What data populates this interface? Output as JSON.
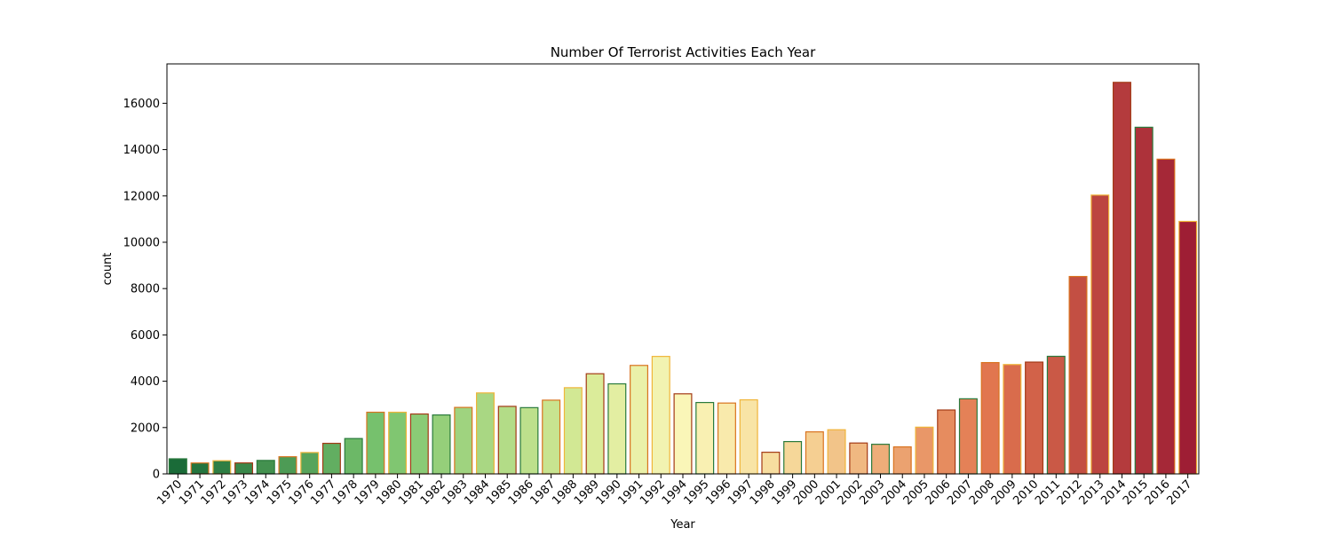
{
  "chart_data": {
    "type": "bar",
    "title": "Number Of Terrorist Activities Each Year",
    "xlabel": "Year",
    "ylabel": "count",
    "ylim": [
      0,
      17700
    ],
    "yticks": [
      0,
      2000,
      4000,
      6000,
      8000,
      10000,
      12000,
      14000,
      16000
    ],
    "grid": false,
    "legend": "none",
    "categories": [
      "1970",
      "1971",
      "1972",
      "1973",
      "1974",
      "1975",
      "1976",
      "1977",
      "1978",
      "1979",
      "1980",
      "1981",
      "1982",
      "1983",
      "1984",
      "1985",
      "1986",
      "1987",
      "1988",
      "1989",
      "1990",
      "1991",
      "1992",
      "1994",
      "1995",
      "1996",
      "1997",
      "1998",
      "1999",
      "2000",
      "2001",
      "2002",
      "2003",
      "2004",
      "2005",
      "2006",
      "2007",
      "2008",
      "2009",
      "2010",
      "2011",
      "2012",
      "2013",
      "2014",
      "2015",
      "2016",
      "2017"
    ],
    "values": [
      651,
      471,
      568,
      473,
      581,
      740,
      923,
      1319,
      1526,
      2662,
      2662,
      2586,
      2544,
      2870,
      3495,
      2915,
      2860,
      3183,
      3721,
      4324,
      3887,
      4683,
      5071,
      3456,
      3081,
      3058,
      3197,
      934,
      1395,
      1814,
      1906,
      1333,
      1278,
      1166,
      2017,
      2758,
      3242,
      4805,
      4721,
      4826,
      5076,
      8522,
      12036,
      16903,
      14965,
      13587,
      10900
    ],
    "fill_colors": [
      "#15703c",
      "#1c843e",
      "#2a9346",
      "#389c4c",
      "#46a655",
      "#55b05d",
      "#63ba63",
      "#72c367",
      "#86cc6b",
      "#98d36e",
      "#a9da73",
      "#b6e07a",
      "#c4e786",
      "#d2ed92",
      "#dff39e",
      "#e9f6a8",
      "#f2f9b3",
      "#fbfdbd",
      "#fffdba",
      "#fff6ae",
      "#feeb9e",
      "#fedf8f",
      "#fdcf7f",
      "#fdbf6f",
      "#fdad60",
      "#fc9a53",
      "#f88848",
      "#f3763f",
      "#ee6337",
      "#e65230",
      "#de432a",
      "#d63524",
      "#cd2a21",
      "#c3211f",
      "#b81a1f",
      "#ad1321",
      "#a30f24",
      "#b6dc7c",
      "#d3ec96",
      "#dff2a4",
      "#eaf6ae",
      "#f1f6b0",
      "#f5f1ae",
      "#f7e7a3",
      "#f5d88f",
      "#f1c57c",
      "#ec9f63"
    ],
    "edge_colors": [
      "#2a6e3a",
      "#c7661c"
    ]
  }
}
